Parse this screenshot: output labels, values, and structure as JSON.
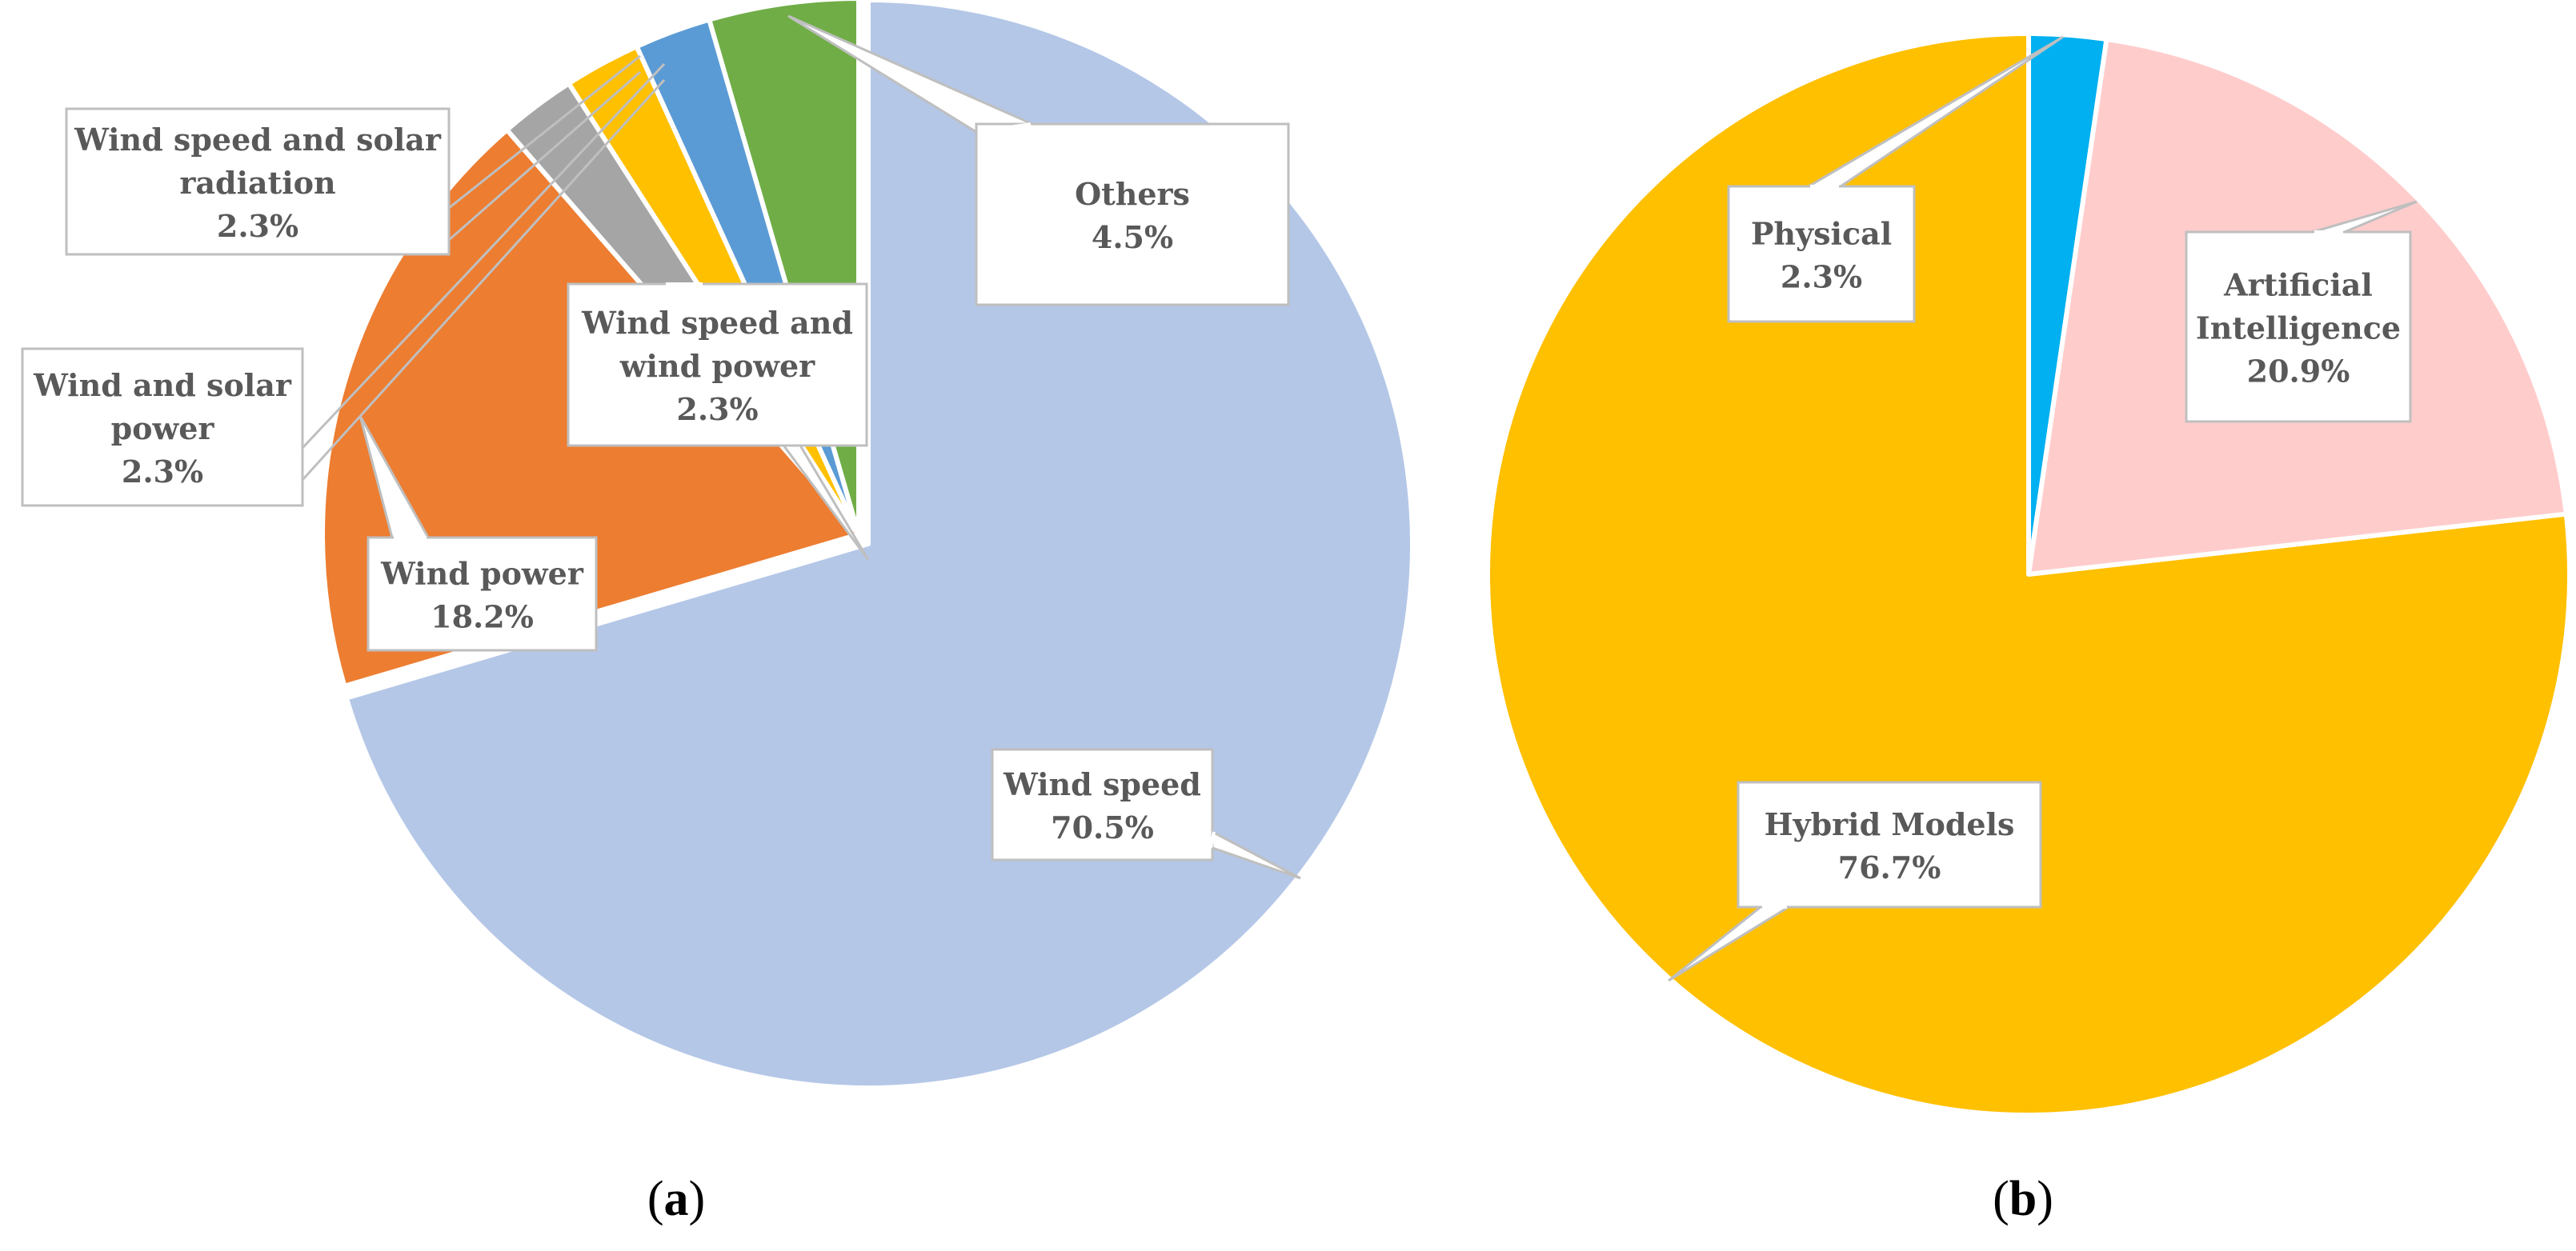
{
  "chart_data": [
    {
      "type": "pie",
      "panel_label": "a",
      "slices": [
        {
          "label": "Wind speed",
          "value": 70.5,
          "value_text": "70.5%",
          "color": "#B4C7E7"
        },
        {
          "label": "Wind power",
          "value": 18.2,
          "value_text": "18.2%",
          "color": "#ED7D31"
        },
        {
          "label": "Wind and solar power",
          "value": 2.3,
          "value_text": "2.3%",
          "color": "#A5A5A5"
        },
        {
          "label": "Wind speed and wind power",
          "value": 2.3,
          "value_text": "2.3%",
          "color": "#FFC000"
        },
        {
          "label": "Wind speed and solar radiation",
          "value": 2.3,
          "value_text": "2.3%",
          "color": "#5B9BD5"
        },
        {
          "label": "Others",
          "value": 4.5,
          "value_text": "4.5%",
          "color": "#70AD47"
        }
      ],
      "callouts": [
        {
          "lines": [
            "Others"
          ],
          "value_text": "4.5%"
        },
        {
          "lines": [
            "Wind speed and solar",
            "radiation"
          ],
          "value_text": "2.3%"
        },
        {
          "lines": [
            "Wind speed and",
            "wind power"
          ],
          "value_text": "2.3%"
        },
        {
          "lines": [
            "Wind and solar",
            "power"
          ],
          "value_text": "2.3%"
        },
        {
          "lines": [
            "Wind power"
          ],
          "value_text": "18.2%"
        },
        {
          "lines": [
            "Wind speed"
          ],
          "value_text": "70.5%"
        }
      ]
    },
    {
      "type": "pie",
      "panel_label": "b",
      "slices": [
        {
          "label": "Physical",
          "value": 2.3,
          "value_text": "2.3%",
          "color": "#00B0F0"
        },
        {
          "label": "Artificial Intelligence",
          "value": 20.9,
          "value_text": "20.9%",
          "color": "#FFCCCC"
        },
        {
          "label": "Hybrid Models",
          "value": 76.7,
          "value_text": "76.7%",
          "color": "#FFC000"
        }
      ],
      "callouts": [
        {
          "lines": [
            "Physical"
          ],
          "value_text": "2.3%"
        },
        {
          "lines": [
            "Artificial",
            "Intelligence"
          ],
          "value_text": "20.9%"
        },
        {
          "lines": [
            "Hybrid Models"
          ],
          "value_text": "76.7%"
        }
      ]
    }
  ]
}
